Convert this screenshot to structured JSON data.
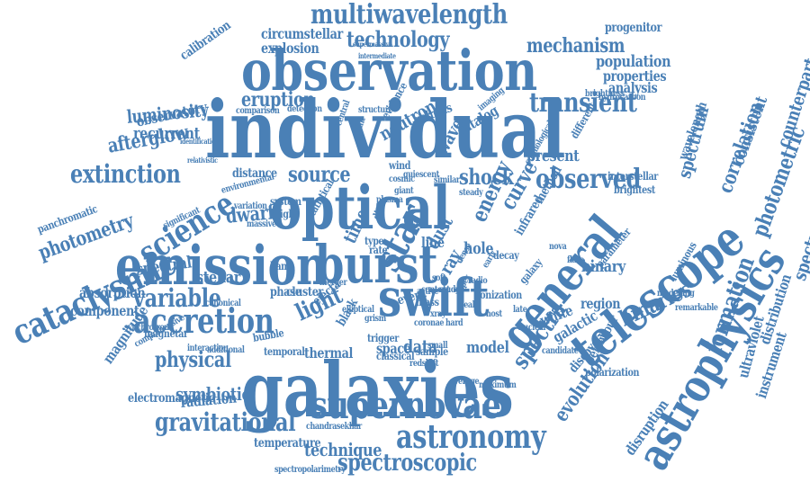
{
  "color": "#4a80b6",
  "words": [
    "individual",
    "observation",
    "galaxies",
    "optical",
    "emission",
    "burst",
    "swift",
    "telescope",
    "astrophysics",
    "general",
    "supernovae",
    "accretion",
    "star",
    "cataclysmic",
    "science",
    "astronomy",
    "multiwavelength",
    "spectroscopic",
    "observed",
    "transient",
    "extinction",
    "gravitational",
    "variable",
    "source",
    "shock",
    "physical",
    "technology",
    "mechanism",
    "photometry",
    "eruption",
    "spectra",
    "photometric",
    "spectroscopy",
    "formation",
    "correlation",
    "afterglow",
    "luminosity",
    "recurrent",
    "dwarf",
    "light",
    "symbiotic",
    "binaries",
    "circumstellar",
    "evolution",
    "explosion",
    "absorption",
    "component",
    "radiation",
    "spectral",
    "curve",
    "dust",
    "stellar",
    "white",
    "data",
    "model",
    "magnitude",
    "observatory",
    "calibration",
    "population",
    "properties",
    "analysis",
    "progenitor",
    "spectrum",
    "consistent",
    "counterpart",
    "distribution",
    "instrument",
    "ultraviolet",
    "technique",
    "temperature",
    "thermal",
    "space",
    "electromagnetic",
    "disruption",
    "neutron",
    "wave",
    "hole",
    "energy",
    "galactic",
    "binary",
    "ray",
    "time",
    "present",
    "region",
    "phase",
    "panchromatic",
    "magnetar",
    "ejecta",
    "polarization",
    "spectropolarimetry",
    "chandrasekhar",
    "sample",
    "redshift",
    "classical",
    "event",
    "galaxy",
    "interstellar",
    "brightest",
    "parameter",
    "luminous",
    "discovery",
    "behaviour",
    "method",
    "catalog",
    "wavelength",
    "distance",
    "system",
    "bright",
    "band",
    "type",
    "rate",
    "loss",
    "structure",
    "evidence",
    "massive",
    "mass",
    "synchrotron",
    "comprehensive",
    "interaction",
    "additional",
    "canonical",
    "active",
    "black",
    "trigger",
    "bubble",
    "study",
    "content",
    "cluster",
    "temporal",
    "maximum",
    "average",
    "candidate",
    "elliptical",
    "infrared",
    "decay",
    "peak",
    "brightness",
    "detection",
    "comparison",
    "identification",
    "relativistic",
    "variation",
    "statistical",
    "merger",
    "grism",
    "cosmological",
    "different",
    "modelling",
    "remarkable",
    "nova",
    "flare",
    "supermassive",
    "intermediate",
    "hydrocarbon",
    "imaging",
    "gehrels",
    "significant",
    "environmental",
    "line",
    "wind",
    "disk",
    "plasma",
    "giant",
    "similar",
    "steady",
    "small",
    "host",
    "point",
    "central",
    "nuclear",
    "super",
    "cosmic",
    "quiescent",
    "dense",
    "early",
    "late",
    "radio",
    "ionization",
    "coronae",
    "xray",
    "hard",
    "soft",
    "burst"
  ]
}
